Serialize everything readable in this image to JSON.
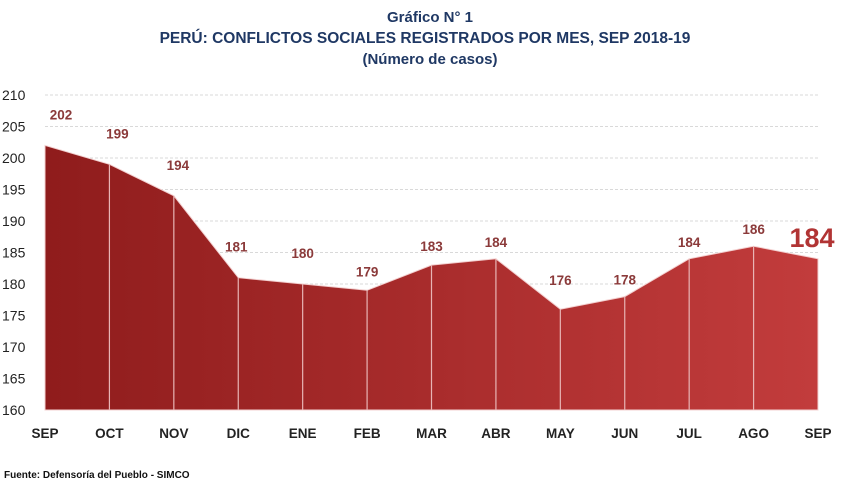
{
  "chart_data": {
    "type": "area",
    "title": "Gráfico N° 1",
    "subtitle": "PERÚ: CONFLICTOS SOCIALES REGISTRADOS POR MES, SEP 2018-19",
    "unit_label": "(Número de casos)",
    "xlabel": "",
    "ylabel": "",
    "categories": [
      "SEP",
      "OCT",
      "NOV",
      "DIC",
      "ENE",
      "FEB",
      "MAR",
      "ABR",
      "MAY",
      "JUN",
      "JUL",
      "AGO",
      "SEP"
    ],
    "series": [
      {
        "name": "Conflictos sociales",
        "values": [
          202,
          199,
          194,
          181,
          180,
          179,
          183,
          184,
          176,
          178,
          184,
          186,
          184
        ]
      }
    ],
    "ylim": [
      160,
      210
    ],
    "yticks": [
      160,
      165,
      170,
      175,
      180,
      185,
      190,
      195,
      200,
      205,
      210
    ],
    "grid": true,
    "legend": "none",
    "highlight_last": true,
    "colors": {
      "area_start": "#8f1c1c",
      "area_end": "#c23c3c",
      "label": "#8b3a3a",
      "last_label": "#b13434",
      "title": "#1f3864",
      "grid": "#d9d9d9"
    }
  },
  "source": "Fuente: Defensoría del Pueblo - SIMCO"
}
